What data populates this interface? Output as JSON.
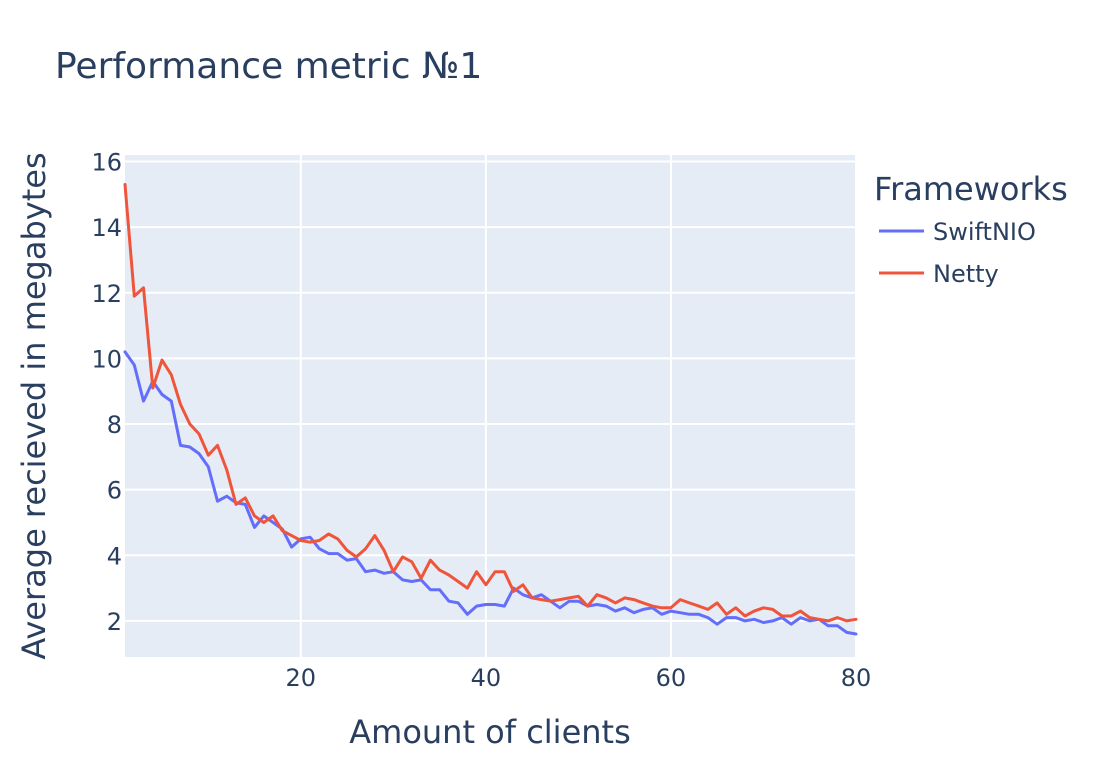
{
  "chart_data": {
    "type": "line",
    "title": "Performance metric №1",
    "xlabel": "Amount of clients",
    "ylabel": "Average recieved in megabytes",
    "xlim": [
      1,
      80
    ],
    "ylim": [
      0.9,
      16.2
    ],
    "xticks": [
      20,
      40,
      60,
      80
    ],
    "yticks": [
      2,
      4,
      6,
      8,
      10,
      12,
      14,
      16
    ],
    "grid": true,
    "plot_background": "#e5ecf6",
    "legend": {
      "title": "Frameworks",
      "placement": "right"
    },
    "x": [
      1,
      2,
      3,
      4,
      5,
      6,
      7,
      8,
      9,
      10,
      11,
      12,
      13,
      14,
      15,
      16,
      17,
      18,
      19,
      20,
      21,
      22,
      23,
      24,
      25,
      26,
      27,
      28,
      29,
      30,
      31,
      32,
      33,
      34,
      35,
      36,
      37,
      38,
      39,
      40,
      41,
      42,
      43,
      44,
      45,
      46,
      47,
      48,
      49,
      50,
      51,
      52,
      53,
      54,
      55,
      56,
      57,
      58,
      59,
      60,
      61,
      62,
      63,
      64,
      65,
      66,
      67,
      68,
      69,
      70,
      71,
      72,
      73,
      74,
      75,
      76,
      77,
      78,
      79,
      80
    ],
    "series": [
      {
        "name": "SwiftNIO",
        "color": "#636efa",
        "values": [
          10.2,
          9.8,
          8.7,
          9.3,
          8.9,
          8.7,
          7.35,
          7.3,
          7.1,
          6.7,
          5.65,
          5.8,
          5.6,
          5.55,
          4.85,
          5.2,
          5.0,
          4.8,
          4.25,
          4.5,
          4.55,
          4.2,
          4.05,
          4.05,
          3.85,
          3.9,
          3.5,
          3.55,
          3.45,
          3.5,
          3.25,
          3.2,
          3.25,
          2.95,
          2.95,
          2.6,
          2.55,
          2.2,
          2.45,
          2.5,
          2.5,
          2.45,
          3.0,
          2.8,
          2.7,
          2.8,
          2.6,
          2.4,
          2.6,
          2.6,
          2.45,
          2.5,
          2.45,
          2.3,
          2.4,
          2.25,
          2.35,
          2.4,
          2.2,
          2.3,
          2.25,
          2.2,
          2.2,
          2.1,
          1.9,
          2.1,
          2.1,
          2.0,
          2.05,
          1.95,
          2.0,
          2.1,
          1.9,
          2.1,
          2.0,
          2.05,
          1.85,
          1.85,
          1.65,
          1.6
        ]
      },
      {
        "name": "Netty",
        "color": "#ef553b",
        "values": [
          15.3,
          11.9,
          12.15,
          9.1,
          9.95,
          9.5,
          8.6,
          8.0,
          7.7,
          7.05,
          7.35,
          6.6,
          5.55,
          5.75,
          5.2,
          5.0,
          5.2,
          4.75,
          4.6,
          4.45,
          4.4,
          4.45,
          4.65,
          4.5,
          4.15,
          3.95,
          4.2,
          4.6,
          4.15,
          3.5,
          3.95,
          3.8,
          3.3,
          3.85,
          3.55,
          3.4,
          3.2,
          3.0,
          3.5,
          3.1,
          3.5,
          3.5,
          2.9,
          3.1,
          2.7,
          2.65,
          2.6,
          2.65,
          2.7,
          2.75,
          2.45,
          2.8,
          2.7,
          2.55,
          2.7,
          2.65,
          2.55,
          2.45,
          2.4,
          2.4,
          2.65,
          2.55,
          2.45,
          2.35,
          2.55,
          2.2,
          2.4,
          2.15,
          2.3,
          2.4,
          2.35,
          2.15,
          2.15,
          2.3,
          2.1,
          2.05,
          2.0,
          2.1,
          2.0,
          2.05
        ]
      }
    ]
  }
}
